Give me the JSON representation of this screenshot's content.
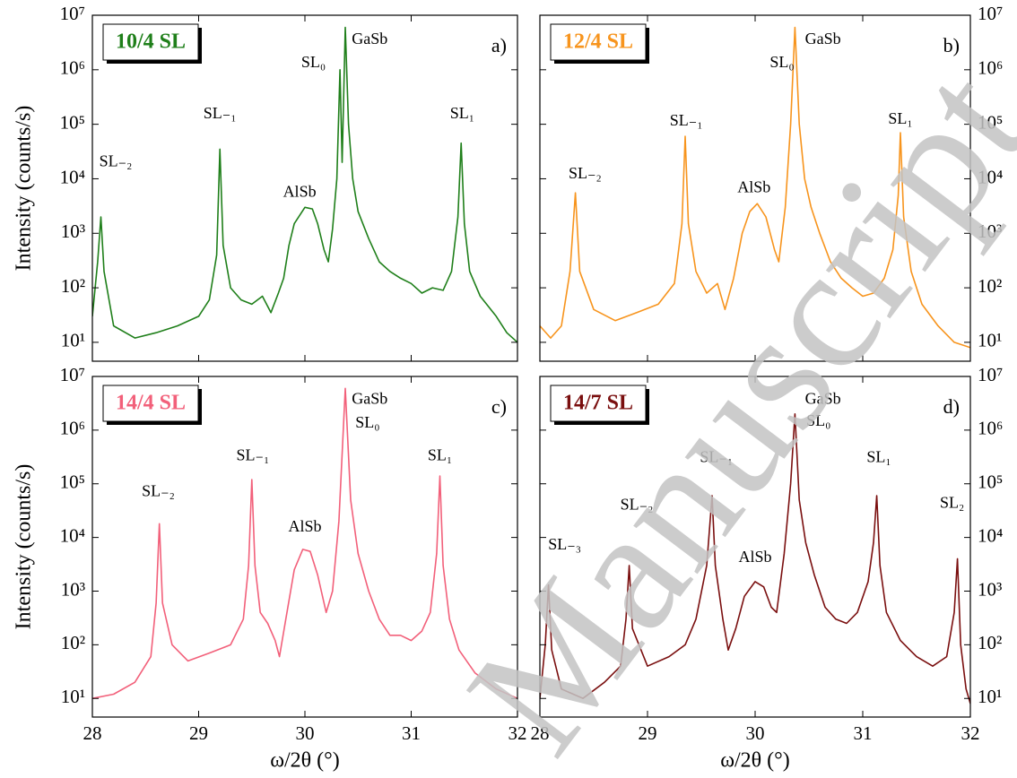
{
  "chart_data": [
    {
      "type": "line",
      "tag": "10/4 SL",
      "panel": "a)",
      "color": "#1f7f1a",
      "ylog": true,
      "yaxis_side": "left",
      "xticklabels": false,
      "ylabel": "Intensity (counts/s)",
      "xlim": [
        28,
        32
      ],
      "xticks": [
        28,
        29,
        30,
        31,
        32
      ],
      "ylim": [
        4.5,
        10000000
      ],
      "yticks": [
        {
          "value": 10,
          "label": "10¹"
        },
        {
          "value": 100,
          "label": "10²"
        },
        {
          "value": 1000,
          "label": "10³"
        },
        {
          "value": 10000,
          "label": "10⁴"
        },
        {
          "value": 100000,
          "label": "10⁵"
        },
        {
          "value": 1000000,
          "label": "10⁶"
        },
        {
          "value": 10000000,
          "label": "10⁷"
        }
      ],
      "x": [
        28.0,
        28.05,
        28.08,
        28.11,
        28.2,
        28.4,
        28.6,
        28.8,
        29.0,
        29.1,
        29.17,
        29.2,
        29.23,
        29.3,
        29.4,
        29.5,
        29.6,
        29.68,
        29.75,
        29.8,
        29.85,
        29.9,
        30.0,
        30.07,
        30.12,
        30.18,
        30.22,
        30.26,
        30.3,
        30.33,
        30.35,
        30.38,
        30.41,
        30.45,
        30.5,
        30.6,
        30.7,
        30.8,
        30.9,
        31.0,
        31.1,
        31.2,
        31.3,
        31.38,
        31.44,
        31.47,
        31.5,
        31.55,
        31.65,
        31.8,
        31.9,
        32.0
      ],
      "values": [
        30,
        300,
        2000,
        200,
        20,
        12,
        15,
        20,
        30,
        60,
        400,
        35000,
        600,
        100,
        60,
        50,
        70,
        35,
        80,
        150,
        600,
        1500,
        3000,
        2800,
        1500,
        500,
        300,
        1200,
        10000,
        1000000,
        20000,
        6000000,
        100000,
        10000,
        2500,
        800,
        300,
        200,
        150,
        120,
        80,
        100,
        90,
        200,
        2000,
        45000,
        1500,
        200,
        70,
        30,
        15,
        10
      ],
      "annotations": [
        {
          "text": "SL₋₂",
          "x": 28.22,
          "y": 20000
        },
        {
          "text": "SL₋₁",
          "x": 29.2,
          "y": 150000
        },
        {
          "text": "AlSb",
          "x": 29.95,
          "y": 5500
        },
        {
          "text": "SL₀",
          "x": 30.08,
          "y": 1300000
        },
        {
          "text": "GaSb",
          "x": 30.61,
          "y": 3500000
        },
        {
          "text": "SL₁",
          "x": 31.48,
          "y": 150000
        }
      ]
    },
    {
      "type": "line",
      "tag": "12/4 SL",
      "panel": "b)",
      "color": "#f7941d",
      "ylog": true,
      "yaxis_side": "right",
      "xticklabels": false,
      "xlim": [
        28,
        32
      ],
      "xticks": [
        28,
        29,
        30,
        31,
        32
      ],
      "ylim": [
        4.5,
        10000000
      ],
      "yticks": [
        {
          "value": 10,
          "label": "10¹"
        },
        {
          "value": 100,
          "label": "10²"
        },
        {
          "value": 1000,
          "label": "10³"
        },
        {
          "value": 10000,
          "label": "10⁴"
        },
        {
          "value": 100000,
          "label": "10⁵"
        },
        {
          "value": 1000000,
          "label": "10⁶"
        },
        {
          "value": 10000000,
          "label": "10⁷"
        }
      ],
      "x": [
        28.0,
        28.1,
        28.2,
        28.28,
        28.33,
        28.37,
        28.5,
        28.7,
        28.9,
        29.1,
        29.25,
        29.32,
        29.35,
        29.38,
        29.45,
        29.55,
        29.65,
        29.72,
        29.8,
        29.88,
        29.95,
        30.02,
        30.1,
        30.18,
        30.22,
        30.28,
        30.33,
        30.37,
        30.41,
        30.46,
        30.52,
        30.6,
        30.7,
        30.8,
        30.9,
        31.0,
        31.1,
        31.2,
        31.28,
        31.33,
        31.35,
        31.38,
        31.45,
        31.55,
        31.7,
        31.85,
        32.0
      ],
      "values": [
        20,
        12,
        20,
        200,
        5500,
        200,
        40,
        25,
        35,
        50,
        120,
        1500,
        60000,
        1500,
        200,
        80,
        120,
        40,
        150,
        1000,
        2500,
        3500,
        2000,
        500,
        300,
        3000,
        100000,
        6000000,
        100000,
        10000,
        3000,
        1000,
        300,
        150,
        100,
        70,
        80,
        150,
        500,
        5000,
        70000,
        2000,
        200,
        50,
        20,
        10,
        8
      ],
      "annotations": [
        {
          "text": "SL₋₂",
          "x": 28.42,
          "y": 12000
        },
        {
          "text": "SL₋₁",
          "x": 29.36,
          "y": 110000
        },
        {
          "text": "AlSb",
          "x": 29.99,
          "y": 6600
        },
        {
          "text": "SL₀",
          "x": 30.25,
          "y": 1300000
        },
        {
          "text": "GaSb",
          "x": 30.63,
          "y": 3500000
        },
        {
          "text": "SL₁",
          "x": 31.35,
          "y": 120000
        }
      ]
    },
    {
      "type": "line",
      "tag": "14/4 SL",
      "panel": "c)",
      "color": "#f2607a",
      "ylog": true,
      "yaxis_side": "left",
      "xticklabels": true,
      "ylabel": "Intensity (counts/s)",
      "xlabel": "ω/2θ (°)",
      "xlim": [
        28,
        32
      ],
      "xticks": [
        28,
        29,
        30,
        31,
        32
      ],
      "ylim": [
        4.5,
        10000000
      ],
      "yticks": [
        {
          "value": 10,
          "label": "10¹"
        },
        {
          "value": 100,
          "label": "10²"
        },
        {
          "value": 1000,
          "label": "10³"
        },
        {
          "value": 10000,
          "label": "10⁴"
        },
        {
          "value": 100000,
          "label": "10⁵"
        },
        {
          "value": 1000000,
          "label": "10⁶"
        },
        {
          "value": 10000000,
          "label": "10⁷"
        }
      ],
      "x": [
        28.0,
        28.2,
        28.4,
        28.55,
        28.6,
        28.63,
        28.66,
        28.75,
        28.9,
        29.1,
        29.3,
        29.42,
        29.47,
        29.5,
        29.53,
        29.58,
        29.65,
        29.72,
        29.76,
        29.82,
        29.9,
        29.98,
        30.05,
        30.12,
        30.2,
        30.26,
        30.32,
        30.38,
        30.43,
        30.5,
        30.6,
        30.7,
        30.8,
        30.9,
        31.0,
        31.1,
        31.18,
        31.24,
        31.27,
        31.3,
        31.36,
        31.45,
        31.6,
        31.8,
        32.0
      ],
      "values": [
        10,
        12,
        20,
        60,
        600,
        18000,
        600,
        100,
        50,
        70,
        100,
        300,
        3000,
        120000,
        3000,
        400,
        250,
        120,
        60,
        300,
        2500,
        6000,
        5500,
        2000,
        400,
        1000,
        20000,
        6000000,
        50000,
        5000,
        1000,
        300,
        150,
        150,
        120,
        180,
        400,
        5000,
        140000,
        3000,
        300,
        80,
        30,
        15,
        10
      ],
      "annotations": [
        {
          "text": "SL₋₂",
          "x": 28.62,
          "y": 69000
        },
        {
          "text": "SL₋₁",
          "x": 29.51,
          "y": 320000
        },
        {
          "text": "AlSb",
          "x": 30.0,
          "y": 15000
        },
        {
          "text": "GaSb",
          "x": 30.61,
          "y": 3600000
        },
        {
          "text": "SL₀",
          "x": 30.59,
          "y": 1300000
        },
        {
          "text": "SL₁",
          "x": 31.27,
          "y": 320000
        }
      ]
    },
    {
      "type": "line",
      "tag": "14/7 SL",
      "panel": "d)",
      "color": "#7a0f0f",
      "ylog": true,
      "yaxis_side": "right",
      "xticklabels": true,
      "xlabel": "ω/2θ (°)",
      "xlim": [
        28,
        32
      ],
      "xticks": [
        28,
        29,
        30,
        31,
        32
      ],
      "ylim": [
        4.5,
        10000000
      ],
      "yticks": [
        {
          "value": 10,
          "label": "10¹"
        },
        {
          "value": 100,
          "label": "10²"
        },
        {
          "value": 1000,
          "label": "10³"
        },
        {
          "value": 10000,
          "label": "10⁴"
        },
        {
          "value": 100000,
          "label": "10⁵"
        },
        {
          "value": 1000000,
          "label": "10⁶"
        },
        {
          "value": 10000000,
          "label": "10⁷"
        }
      ],
      "x": [
        28.0,
        28.05,
        28.08,
        28.11,
        28.2,
        28.4,
        28.6,
        28.75,
        28.8,
        28.83,
        28.86,
        29.0,
        29.2,
        29.35,
        29.45,
        29.55,
        29.6,
        29.63,
        29.7,
        29.75,
        29.82,
        29.9,
        30.0,
        30.08,
        30.15,
        30.2,
        30.27,
        30.33,
        30.37,
        30.41,
        30.47,
        30.55,
        30.65,
        30.75,
        30.85,
        30.95,
        31.05,
        31.1,
        31.13,
        31.16,
        31.22,
        31.35,
        31.5,
        31.65,
        31.78,
        31.85,
        31.88,
        31.91,
        31.96,
        32.0
      ],
      "values": [
        10,
        100,
        1300,
        80,
        15,
        10,
        20,
        40,
        300,
        3000,
        200,
        40,
        60,
        100,
        300,
        3000,
        60000,
        3000,
        300,
        80,
        200,
        800,
        1500,
        1200,
        500,
        400,
        5000,
        100000,
        2000000,
        50000,
        8000,
        2000,
        500,
        300,
        250,
        400,
        1500,
        8000,
        60000,
        3000,
        400,
        120,
        60,
        40,
        60,
        400,
        4000,
        100,
        15,
        8
      ],
      "annotations": [
        {
          "text": "SL₋₃",
          "x": 28.23,
          "y": 7000
        },
        {
          "text": "SL₋₂",
          "x": 28.9,
          "y": 39000
        },
        {
          "text": "SL₋₁",
          "x": 29.64,
          "y": 300000
        },
        {
          "text": "AlSb",
          "x": 30.0,
          "y": 4100
        },
        {
          "text": "GaSb",
          "x": 30.63,
          "y": 3600000
        },
        {
          "text": "SL₀",
          "x": 30.59,
          "y": 1400000
        },
        {
          "text": "SL₁",
          "x": 31.15,
          "y": 300000
        },
        {
          "text": "SL₂",
          "x": 31.83,
          "y": 42000
        }
      ]
    }
  ],
  "watermark": "Manuscript"
}
